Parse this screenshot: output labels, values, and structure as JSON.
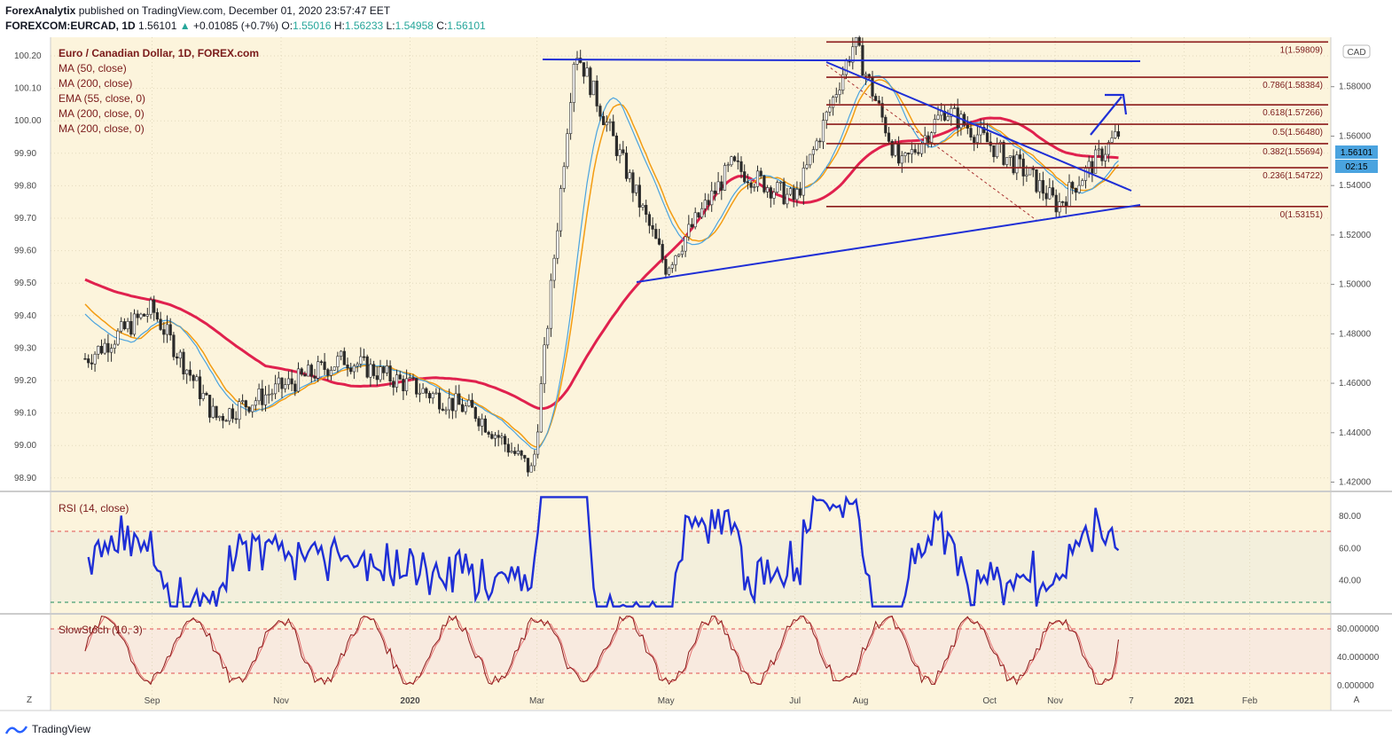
{
  "header": {
    "publisher": "ForexAnalytix",
    "published_text": "published on TradingView.com, December 01, 2020 23:57:47 EET",
    "symbol_line": "FOREXCOM:EURCAD, 1D",
    "last": "1.56101",
    "change": "+0.01085 (+0.7%)",
    "o_label": "O:",
    "o": "1.55016",
    "h_label": "H:",
    "h": "1.56233",
    "l_label": "L:",
    "l": "1.54958",
    "c_label": "C:",
    "c": "1.56101"
  },
  "legend": [
    "Euro / Canadian Dollar, 1D, FOREX.com",
    "MA (50, close)",
    "MA (200, close)",
    "EMA (55, close, 0)",
    "MA (200, close, 0)",
    "MA (200, close, 0)"
  ],
  "rsi_label": "RSI (14, close)",
  "stoch_label": "SlowStoch (10, 3)",
  "currency_badge": "CAD",
  "price_badge": "1.56101",
  "time_badge": "02:15",
  "footer_brand": "TradingView",
  "corner_left": "Z",
  "corner_right": "A",
  "colors": {
    "background": "#fcf4dc",
    "rsi_background": "#f3efdc",
    "stoch_background": "#f8eadf",
    "ma50": "#4aa3df",
    "ema55": "#f39c12",
    "ma200": "#e0214e",
    "trendline": "#1f2fd6",
    "fib": "#8b1a1a",
    "candle": "#2a2a2a",
    "rsi": "#1f2fd6",
    "stoch_k": "#8b1a1a",
    "stoch_d": "#e57373"
  },
  "chart_data": [
    {
      "type": "candlestick",
      "title": "Euro / Canadian Dollar, 1D, FOREX.com",
      "x_ticks": [
        "Sep",
        "Nov",
        "2020",
        "Mar",
        "May",
        "Jul",
        "Aug",
        "Oct",
        "Nov",
        "7",
        "2021",
        "Feb"
      ],
      "left_axis_ticks": [
        "100.20",
        "100.10",
        "100.00",
        "99.90",
        "99.80",
        "99.70",
        "99.60",
        "99.50",
        "99.40",
        "99.30",
        "99.20",
        "99.10",
        "99.00",
        "98.90"
      ],
      "right_axis_ticks": [
        "1.58000",
        "1.56000",
        "1.54000",
        "1.52000",
        "1.50000",
        "1.48000",
        "1.46000",
        "1.44000",
        "1.42000"
      ],
      "ylim": [
        1.4166,
        1.6
      ],
      "key_points": [
        {
          "x": "2019-08",
          "y": 1.47
        },
        {
          "x": "2019-09",
          "y": 1.49
        },
        {
          "x": "2019-10",
          "y": 1.446
        },
        {
          "x": "2019-12",
          "y": 1.47
        },
        {
          "x": "2020-02",
          "y": 1.448
        },
        {
          "x": "2020-02-28",
          "y": 1.424
        },
        {
          "x": "2020-03-19",
          "y": 1.596
        },
        {
          "x": "2020-05",
          "y": 1.507
        },
        {
          "x": "2020-06",
          "y": 1.548
        },
        {
          "x": "2020-07",
          "y": 1.534
        },
        {
          "x": "2020-07-29",
          "y": 1.598
        },
        {
          "x": "2020-08-20",
          "y": 1.547
        },
        {
          "x": "2020-09-10",
          "y": 1.571
        },
        {
          "x": "2020-10-20",
          "y": 1.544
        },
        {
          "x": "2020-11-02",
          "y": 1.532
        },
        {
          "x": "2020-12-01",
          "y": 1.561
        }
      ],
      "fib_levels": [
        {
          "label": "1(1.59809)",
          "value": 1.59809
        },
        {
          "label": "0.786(1.58384)",
          "value": 1.58384
        },
        {
          "label": "0.618(1.57266)",
          "value": 1.57266
        },
        {
          "label": "0.5(1.56480)",
          "value": 1.5648
        },
        {
          "label": "0.382(1.55694)",
          "value": 1.55694
        },
        {
          "label": "0.236(1.54722)",
          "value": 1.54722
        },
        {
          "label": "0(1.53151)",
          "value": 1.53151
        }
      ],
      "grid": true,
      "legend_position": "top-left"
    },
    {
      "type": "line",
      "title": "RSI (14, close)",
      "ticks": [
        "80.00",
        "60.00",
        "40.00"
      ],
      "ylim": [
        20,
        95
      ],
      "overbought": 70,
      "oversold": 30,
      "last": 59
    },
    {
      "type": "line",
      "title": "SlowStoch (10, 3)",
      "ticks": [
        "80.000000",
        "40.000000",
        "0.000000"
      ],
      "ylim": [
        0,
        100
      ],
      "upper": 80,
      "lower": 20,
      "last": 65
    }
  ]
}
